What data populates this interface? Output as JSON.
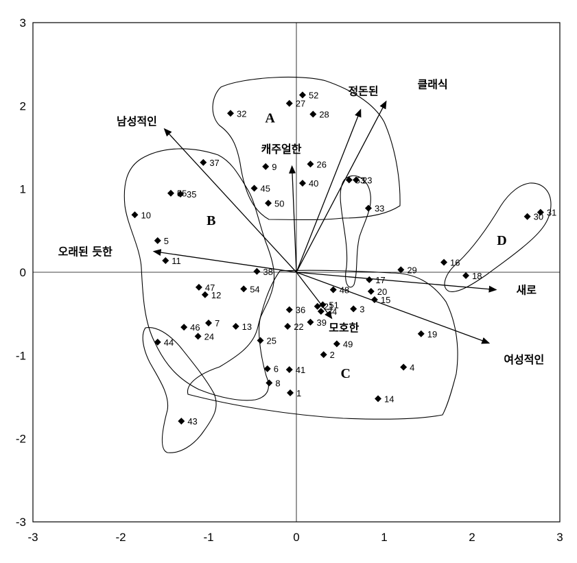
{
  "chart_data": {
    "type": "scatter",
    "xlim": [
      -3,
      3
    ],
    "ylim": [
      -3,
      3
    ],
    "xticks": [
      "-3",
      "-2",
      "-1",
      "0",
      "1",
      "2",
      "3"
    ],
    "yticks": [
      "3",
      "2",
      "1",
      "0",
      "-1",
      "-2",
      "-3"
    ],
    "grid": false,
    "marker": "diamond",
    "points": [
      {
        "label": "1",
        "x": -0.07,
        "y": -1.45
      },
      {
        "label": "2",
        "x": 0.31,
        "y": -0.99
      },
      {
        "label": "3",
        "x": 0.65,
        "y": -0.44
      },
      {
        "label": "4",
        "x": 1.22,
        "y": -1.14
      },
      {
        "label": "5",
        "x": -1.58,
        "y": 0.38
      },
      {
        "label": "6",
        "x": -0.33,
        "y": -1.16
      },
      {
        "label": "7",
        "x": -1.0,
        "y": -0.61
      },
      {
        "label": "8",
        "x": -0.31,
        "y": -1.33
      },
      {
        "label": "9",
        "x": -0.35,
        "y": 1.27
      },
      {
        "label": "10",
        "x": -1.84,
        "y": 0.69
      },
      {
        "label": "11",
        "x": -1.49,
        "y": 0.14
      },
      {
        "label": "12",
        "x": -1.04,
        "y": -0.27
      },
      {
        "label": "13",
        "x": -0.69,
        "y": -0.65
      },
      {
        "label": "14",
        "x": 0.93,
        "y": -1.52
      },
      {
        "label": "15",
        "x": 0.89,
        "y": -0.33
      },
      {
        "label": "16",
        "x": 1.68,
        "y": 0.12
      },
      {
        "label": "17",
        "x": 0.83,
        "y": -0.09
      },
      {
        "label": "18",
        "x": 1.93,
        "y": -0.04
      },
      {
        "label": "19",
        "x": 1.42,
        "y": -0.74
      },
      {
        "label": "20",
        "x": 0.85,
        "y": -0.23
      },
      {
        "label": "21",
        "x": 0.24,
        "y": -0.41
      },
      {
        "label": "22",
        "x": -0.1,
        "y": -0.65
      },
      {
        "label": "23",
        "x": 0.68,
        "y": 1.11
      },
      {
        "label": "24",
        "x": -1.12,
        "y": -0.77
      },
      {
        "label": "25",
        "x": -0.41,
        "y": -0.82
      },
      {
        "label": "26",
        "x": 0.16,
        "y": 1.3
      },
      {
        "label": "27",
        "x": -0.08,
        "y": 2.03
      },
      {
        "label": "28",
        "x": 0.19,
        "y": 1.9
      },
      {
        "label": "29",
        "x": 1.19,
        "y": 0.03
      },
      {
        "label": "30",
        "x": 2.63,
        "y": 0.67
      },
      {
        "label": "31",
        "x": 2.78,
        "y": 0.72
      },
      {
        "label": "32",
        "x": -0.75,
        "y": 1.91
      },
      {
        "label": "33",
        "x": 0.82,
        "y": 0.77
      },
      {
        "label": "34",
        "x": 0.28,
        "y": -0.47
      },
      {
        "label": "35",
        "x": -1.32,
        "y": 0.94
      },
      {
        "label": "36",
        "x": -0.08,
        "y": -0.45
      },
      {
        "label": "37",
        "x": -1.06,
        "y": 1.32
      },
      {
        "label": "38",
        "x": -0.45,
        "y": 0.01
      },
      {
        "label": "39",
        "x": 0.16,
        "y": -0.6
      },
      {
        "label": "40",
        "x": 0.07,
        "y": 1.07
      },
      {
        "label": "41",
        "x": -0.08,
        "y": -1.17
      },
      {
        "label": "43",
        "x": -1.31,
        "y": -1.79
      },
      {
        "label": "44",
        "x": -1.58,
        "y": -0.84
      },
      {
        "label": "45",
        "x": -0.48,
        "y": 1.01
      },
      {
        "label": "46",
        "x": -1.28,
        "y": -0.66
      },
      {
        "label": "47",
        "x": -1.11,
        "y": -0.18
      },
      {
        "label": "48",
        "x": 0.42,
        "y": -0.21
      },
      {
        "label": "49",
        "x": 0.46,
        "y": -0.86
      },
      {
        "label": "50",
        "x": -0.32,
        "y": 0.83
      },
      {
        "label": "51",
        "x": 0.3,
        "y": -0.39
      },
      {
        "label": "52",
        "x": 0.07,
        "y": 2.13
      },
      {
        "label": "53",
        "x": 0.6,
        "y": 1.11
      },
      {
        "label": "54",
        "x": -0.6,
        "y": -0.2
      },
      {
        "label": "55",
        "x": -1.43,
        "y": 0.95
      }
    ],
    "vectors": [
      {
        "label": "남성적인",
        "x": -1.5,
        "y": 1.72
      },
      {
        "label": "캐주얼한",
        "x": -0.05,
        "y": 1.27
      },
      {
        "label": "정돈된",
        "x": 0.73,
        "y": 1.95
      },
      {
        "label": "클래식",
        "x": 1.02,
        "y": 2.05
      },
      {
        "label": "오래된 듯한",
        "x": -1.62,
        "y": 0.25
      },
      {
        "label": "새로",
        "x": 2.27,
        "y": -0.21
      },
      {
        "label": "여성적인",
        "x": 2.19,
        "y": -0.85
      },
      {
        "label": "모호한",
        "x": 0.4,
        "y": -0.55
      }
    ],
    "clusters": [
      {
        "label": "A",
        "x": -0.3,
        "y": 1.8
      },
      {
        "label": "B",
        "x": -0.97,
        "y": 0.57
      },
      {
        "label": "C",
        "x": 0.56,
        "y": -1.27
      },
      {
        "label": "D",
        "x": 2.34,
        "y": 0.33
      }
    ]
  }
}
